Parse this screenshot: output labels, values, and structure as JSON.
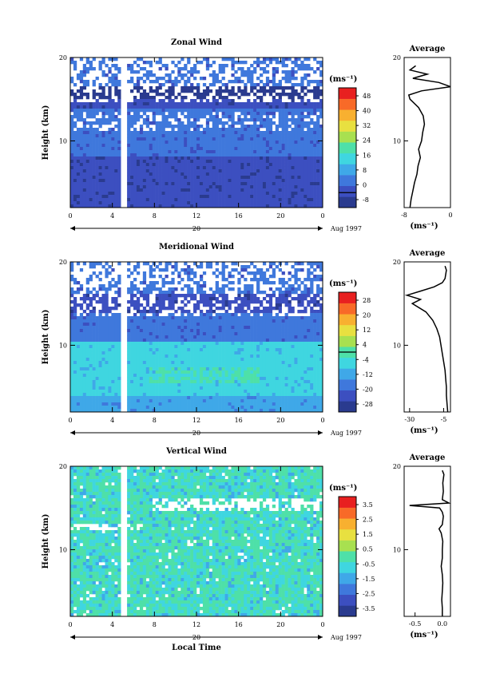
{
  "chart_data": [
    {
      "type": "heatmap",
      "title": "Zonal Wind",
      "ylabel": "Height (km)",
      "xlabel": "",
      "x_ticks": [
        "0",
        "4",
        "8",
        "12",
        "16",
        "20",
        "0"
      ],
      "xlim": [
        0,
        24
      ],
      "y_ticks": [
        "20",
        "10"
      ],
      "ylim": [
        2,
        20
      ],
      "date_marker": "20",
      "date_label": "Aug 1997",
      "colorbar": {
        "unit_label": "(ms⁻¹)",
        "tick_labels": [
          "48",
          "40",
          "32",
          "24",
          "16",
          "8",
          "0",
          "-8"
        ],
        "levels": [
          -8,
          0,
          8,
          16,
          24,
          32,
          40,
          48
        ],
        "colors": [
          "#2a3b8f",
          "#3c4fc0",
          "#3f78dc",
          "#3fa8e8",
          "#3fd6e0",
          "#4ee0a8",
          "#a8e050",
          "#e8e040",
          "#f8b030",
          "#f86a28",
          "#e82020"
        ],
        "zero_line_fraction": 0.875
      },
      "field_summary": "zonal wind contours vs local time and height; strong westerly band near 15-16 km",
      "average_profile": {
        "title": "Average",
        "xlabel": "(ms⁻¹)",
        "x_ticks": [
          "-8",
          "0"
        ],
        "xlim": [
          -8,
          0
        ],
        "y_ticks": [
          "20",
          "10"
        ],
        "ylim": [
          2,
          20
        ],
        "heights": [
          2.0,
          3.0,
          4.0,
          5.0,
          6.0,
          7.0,
          8.0,
          9.0,
          10.0,
          11.0,
          12.0,
          13.0,
          14.0,
          15.0,
          15.5,
          16.0,
          16.5,
          17.0,
          17.5,
          18.0,
          18.5,
          19.0
        ],
        "values": [
          -7.0,
          -6.8,
          -6.5,
          -6.2,
          -5.8,
          -5.6,
          -5.2,
          -5.5,
          -5.0,
          -4.8,
          -4.5,
          -4.7,
          -5.5,
          -7.0,
          -7.2,
          -5.0,
          0.0,
          -2.0,
          -6.5,
          -4.0,
          -7.0,
          -6.0
        ]
      }
    },
    {
      "type": "heatmap",
      "title": "Meridional Wind",
      "ylabel": "Height (km)",
      "xlabel": "",
      "x_ticks": [
        "0",
        "4",
        "8",
        "12",
        "16",
        "20",
        "0"
      ],
      "xlim": [
        0,
        24
      ],
      "y_ticks": [
        "20",
        "10"
      ],
      "ylim": [
        2,
        20
      ],
      "date_marker": "20",
      "date_label": "Aug 1997",
      "colorbar": {
        "unit_label": "(ms⁻¹)",
        "tick_labels": [
          "28",
          "20",
          "12",
          "4",
          "-4",
          "-12",
          "-20",
          "-28"
        ],
        "levels": [
          -28,
          -20,
          -12,
          -4,
          4,
          12,
          20,
          28
        ],
        "colors": [
          "#2a3b8f",
          "#3c4fc0",
          "#3f78dc",
          "#3fa8e8",
          "#3fd6e0",
          "#4ee0a8",
          "#a8e050",
          "#e8e040",
          "#f8b030",
          "#f86a28",
          "#e82020"
        ],
        "zero_line_fraction": 0.5
      },
      "field_summary": "meridional wind contours vs local time and height; strong southward band near 15-16 km",
      "average_profile": {
        "title": "Average",
        "xlabel": "(ms⁻¹)",
        "x_ticks": [
          "-30",
          "-5"
        ],
        "xlim": [
          -34,
          0
        ],
        "y_ticks": [
          "20",
          "10"
        ],
        "ylim": [
          2,
          20
        ],
        "heights": [
          2.0,
          3.0,
          4.0,
          5.0,
          6.0,
          7.0,
          8.0,
          9.0,
          10.0,
          11.0,
          12.0,
          13.0,
          14.0,
          15.0,
          15.5,
          16.0,
          16.5,
          17.0,
          17.5,
          18.0,
          19.0,
          19.5
        ],
        "values": [
          -2.0,
          -2.5,
          -3.0,
          -3.0,
          -3.5,
          -4.0,
          -5.0,
          -6.0,
          -7.0,
          -8.0,
          -10.0,
          -13.0,
          -18.0,
          -28.0,
          -22.0,
          -32.0,
          -22.0,
          -12.0,
          -6.0,
          -4.0,
          -3.0,
          -4.0
        ]
      }
    },
    {
      "type": "heatmap",
      "title": "Vertical Wind",
      "ylabel": "Height (km)",
      "xlabel": "Local Time",
      "x_ticks": [
        "0",
        "4",
        "8",
        "12",
        "16",
        "20",
        "0"
      ],
      "xlim": [
        0,
        24
      ],
      "y_ticks": [
        "20",
        "10"
      ],
      "ylim": [
        2,
        20
      ],
      "date_marker": "20",
      "date_label": "Aug 1997",
      "colorbar": {
        "unit_label": "(ms⁻¹)",
        "tick_labels": [
          "3.5",
          "2.5",
          "1.5",
          "0.5",
          "-0.5",
          "-1.5",
          "-2.5",
          "-3.5"
        ],
        "levels": [
          -3.5,
          -2.5,
          -1.5,
          -0.5,
          0.5,
          1.5,
          2.5,
          3.5
        ],
        "colors": [
          "#2a3b8f",
          "#3c4fc0",
          "#3f78dc",
          "#3fa8e8",
          "#3fd6e0",
          "#4ee0a8",
          "#a8e050",
          "#e8e040",
          "#f8b030",
          "#f86a28",
          "#e82020"
        ],
        "zero_line_fraction": null
      },
      "field_summary": "vertical wind vs local time and height; mostly near zero with a data gap near 15-16 km",
      "average_profile": {
        "title": "Average",
        "xlabel": "(ms⁻¹)",
        "x_ticks": [
          "-0.5",
          "0.0"
        ],
        "xlim": [
          -0.7,
          0.15
        ],
        "y_ticks": [
          "20",
          "10"
        ],
        "ylim": [
          2,
          20
        ],
        "heights": [
          2.0,
          3.0,
          4.0,
          5.0,
          6.0,
          7.0,
          8.0,
          9.0,
          10.0,
          11.0,
          12.0,
          12.5,
          13.0,
          14.0,
          14.5,
          15.0,
          15.3,
          15.6,
          16.0,
          17.0,
          18.0,
          19.0,
          19.5
        ],
        "values": [
          0.0,
          0.0,
          -0.01,
          0.0,
          0.01,
          0.0,
          -0.02,
          0.0,
          0.0,
          0.01,
          -0.02,
          -0.06,
          0.0,
          0.02,
          0.0,
          -0.05,
          -0.6,
          0.12,
          0.0,
          0.02,
          0.01,
          0.03,
          0.0
        ]
      }
    }
  ]
}
